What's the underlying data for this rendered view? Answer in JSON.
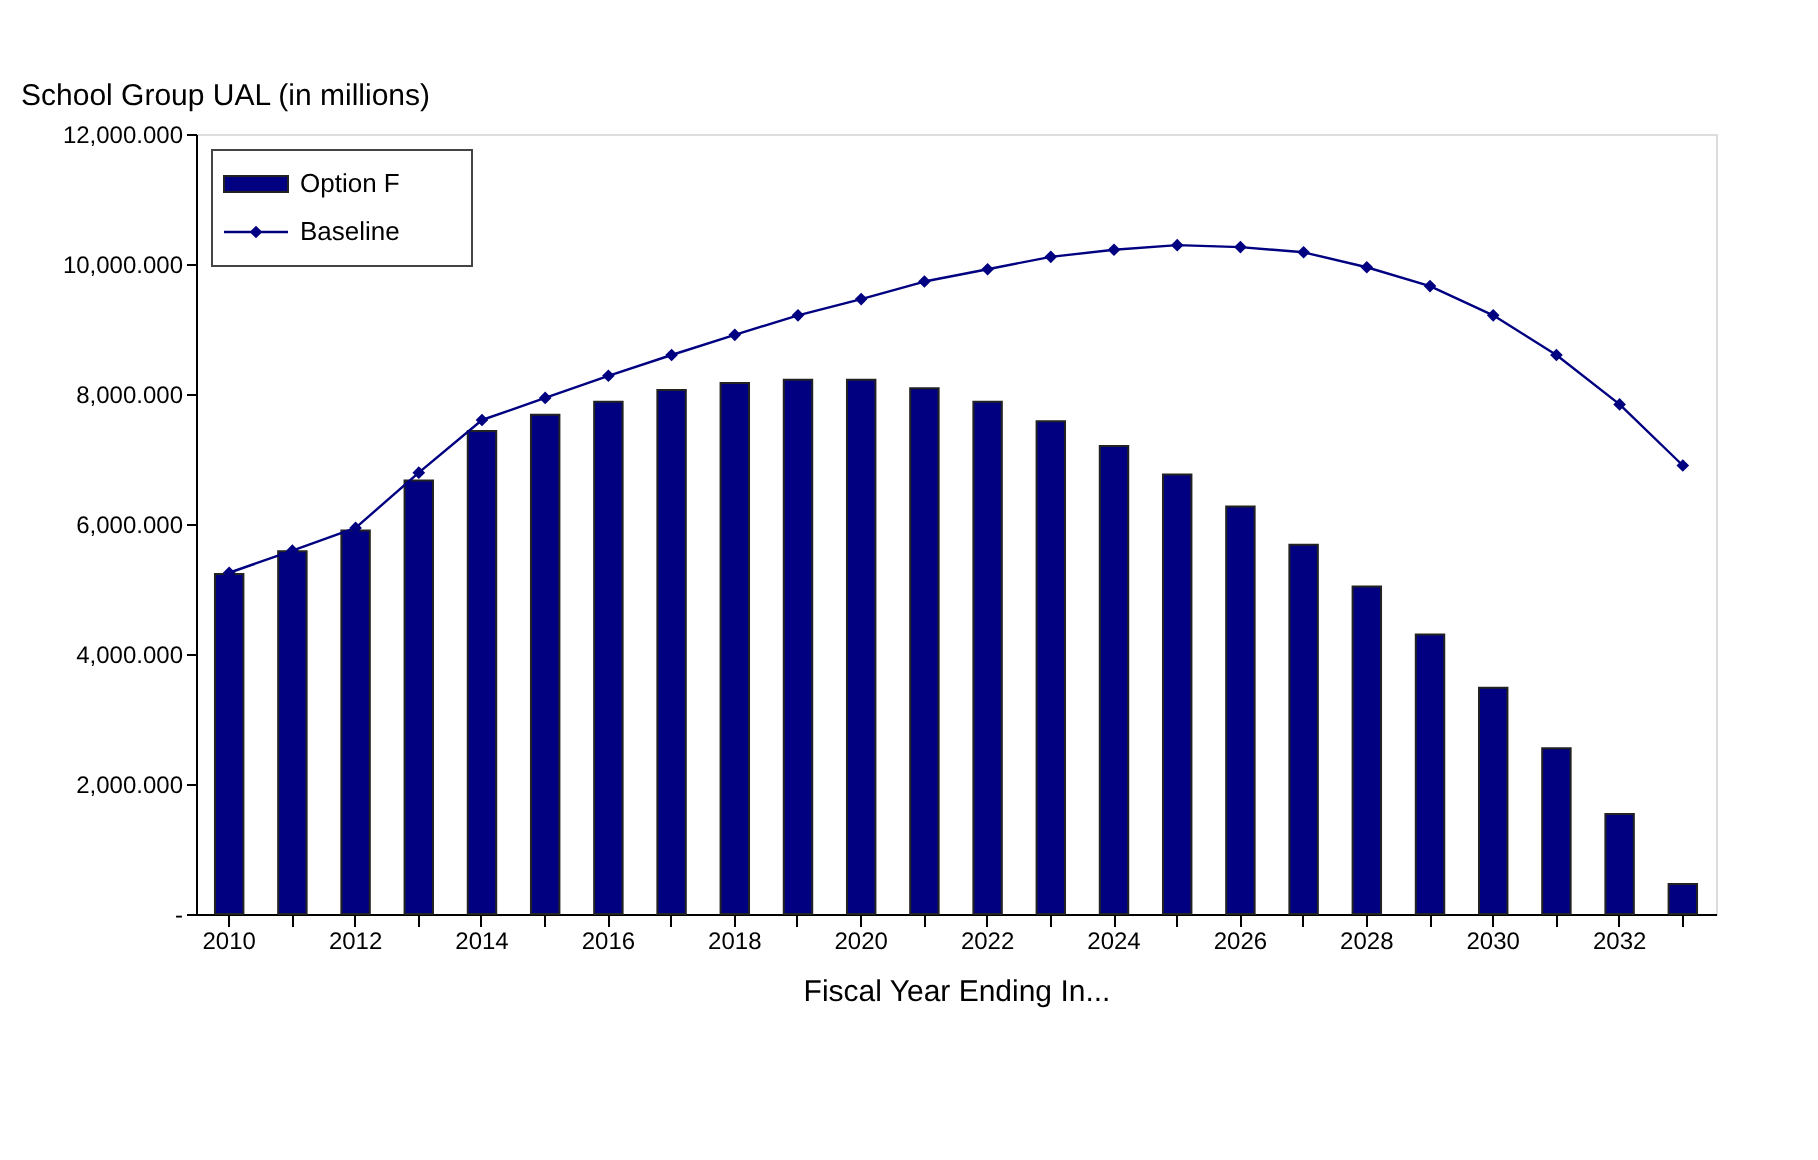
{
  "chart_data": {
    "type": "bar",
    "ylabel": "School Group UAL (in millions)",
    "xlabel": "Fiscal Year Ending In...",
    "categories": [
      "2010",
      null,
      "2012",
      null,
      "2014",
      null,
      "2016",
      null,
      "2018",
      null,
      "2020",
      null,
      "2022",
      null,
      "2024",
      null,
      "2026",
      null,
      "2028",
      null,
      "2030",
      null,
      "2032",
      null
    ],
    "series": [
      {
        "name": "Option F",
        "color": "#000080",
        "values": [
          5230,
          5580,
          5900,
          6670,
          7430,
          7680,
          7880,
          8060,
          8170,
          8220,
          8220,
          8090,
          7880,
          7580,
          7200,
          6760,
          6270,
          5680,
          5040,
          4300,
          3480,
          2550,
          1540,
          460
        ]
      },
      {
        "name": "Baseline",
        "type": "line",
        "color": "#000080",
        "marker": "diamond",
        "values": [
          5250,
          5590,
          5940,
          6790,
          7600,
          7940,
          8280,
          8600,
          8910,
          9210,
          9460,
          9730,
          9920,
          10110,
          10220,
          10290,
          10260,
          10180,
          9950,
          9660,
          9210,
          8600,
          7840,
          6900
        ]
      }
    ],
    "ylim": [
      0,
      12000
    ],
    "yticks": [
      {
        "value": 0,
        "label": "-"
      },
      {
        "value": 2000,
        "label": "2,000.000"
      },
      {
        "value": 4000,
        "label": "4,000.000"
      },
      {
        "value": 6000,
        "label": "6,000.000"
      },
      {
        "value": 8000,
        "label": "8,000.000"
      },
      {
        "value": 10000,
        "label": "10,000.000"
      },
      {
        "value": 12000,
        "label": "12,000.000"
      }
    ],
    "grid": false,
    "legend": "top left"
  }
}
